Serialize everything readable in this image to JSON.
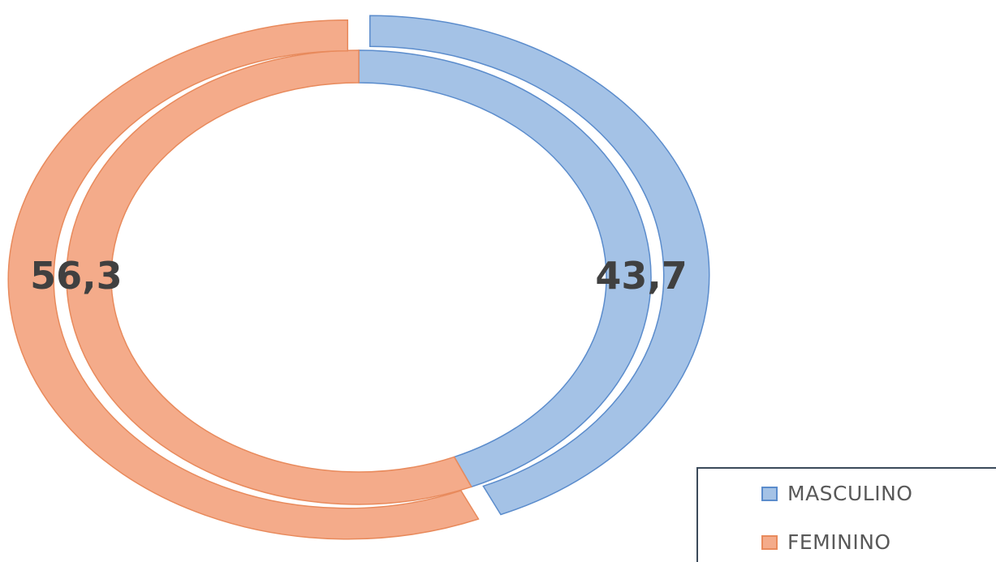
{
  "chart_data": {
    "type": "pie",
    "subtype": "double-doughnut",
    "categories": [
      "MASCULINO",
      "FEMININO"
    ],
    "series": [
      {
        "values": [
          43.7,
          56.3
        ]
      },
      {
        "values": [
          43.7,
          56.3
        ]
      }
    ],
    "data_labels": [
      "43,7",
      "56,3"
    ],
    "colors": {
      "MASCULINO": {
        "fill": "#a4c2e6",
        "stroke": "#5b8ccc"
      },
      "FEMININO": {
        "fill": "#f4ab8a",
        "stroke": "#e88a5c"
      }
    },
    "start_angle_deg": 0,
    "direction": "clockwise",
    "legend": {
      "position": "bottom-right",
      "entries": [
        "MASCULINO",
        "FEMININO"
      ]
    }
  }
}
